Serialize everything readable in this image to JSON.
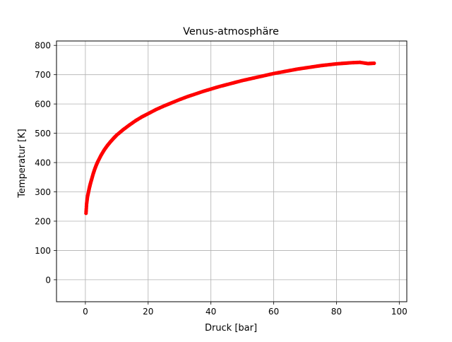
{
  "chart_data": {
    "type": "scatter",
    "title": "Venus-atmosphäre",
    "xlabel": "Druck [bar]",
    "ylabel": "Temperatur [K]",
    "xlim": [
      -9.2,
      102.4
    ],
    "ylim": [
      -75,
      815
    ],
    "xticks": [
      0,
      20,
      40,
      60,
      80,
      100
    ],
    "yticks": [
      0,
      100,
      200,
      300,
      400,
      500,
      600,
      700,
      800
    ],
    "xtick_labels": [
      "0",
      "20",
      "40",
      "60",
      "80",
      "100"
    ],
    "ytick_labels": [
      "0",
      "100",
      "200",
      "300",
      "400",
      "500",
      "600",
      "700",
      "800"
    ],
    "grid": true,
    "marker_color": "#ff0000",
    "series": [
      {
        "x": [
          0.2,
          0.4,
          0.7,
          1.0,
          1.3,
          1.6,
          2.0,
          2.5,
          3.0,
          3.5,
          4.0,
          5.0,
          6.0,
          7.0,
          8.0,
          9.0,
          10.0,
          12.0,
          14.0,
          16.0,
          18.0,
          20.0,
          22.5,
          25.0,
          27.5,
          30.0,
          32.5,
          35.0,
          37.5,
          40.0,
          42.5,
          45.0,
          47.5,
          50.0,
          52.5,
          55.0,
          57.5,
          60.0,
          62.5,
          65.0,
          67.5,
          70.0,
          72.5,
          75.0,
          77.5,
          80.0,
          82.5,
          85.0,
          87.5,
          90.0,
          92.0
        ],
        "y": [
          227,
          260,
          285,
          300,
          315,
          328,
          343,
          362,
          378,
          392,
          404,
          425,
          443,
          458,
          471,
          483,
          494,
          512,
          528,
          543,
          556,
          567,
          581,
          593,
          604,
          615,
          625,
          634,
          643,
          651,
          659,
          666,
          673,
          680,
          686,
          692,
          698,
          704,
          709,
          714,
          719,
          723,
          727,
          731,
          734,
          737,
          739,
          741,
          742,
          738,
          739
        ]
      }
    ]
  }
}
